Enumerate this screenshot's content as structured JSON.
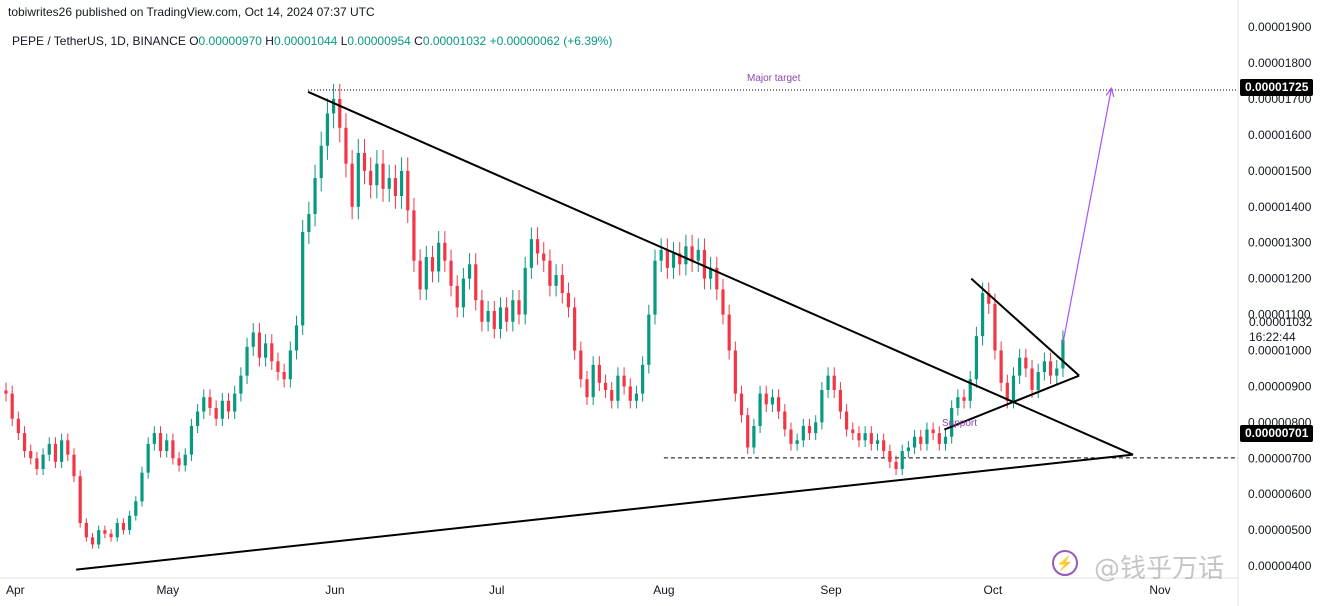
{
  "header": {
    "publisher": "tobiwrites26 published on TradingView.com, Oct 14, 2024 07:37 UTC",
    "symbol": "PEPE / TetherUS, 1D, BINANCE",
    "ohlc": [
      {
        "k": "O",
        "v": "0.00000970"
      },
      {
        "k": "H",
        "v": "0.00001044"
      },
      {
        "k": "L",
        "v": "0.00000954"
      },
      {
        "k": "C",
        "v": "0.00001032"
      }
    ],
    "change": "+0.00000062 (+6.39%)"
  },
  "annotations": {
    "major_target": "Major target",
    "support": "Support",
    "target_price": "0.00001725",
    "support_price": "0.00000701",
    "last_price": "0.00001032",
    "countdown": "16:22:44"
  },
  "watermark": {
    "text": "@钱乎万话",
    "icon": "lightning-icon"
  },
  "colors": {
    "up": "#089981",
    "down": "#f23645",
    "trend": "#000000",
    "target_arrow": "#a855f7"
  },
  "chart_data": {
    "type": "candlestick",
    "x_ticks": [
      "Apr",
      "May",
      "Jun",
      "Jul",
      "Aug",
      "Sep",
      "Oct",
      "Nov"
    ],
    "y_ticks": [
      "0.00000400",
      "0.00000500",
      "0.00000600",
      "0.00000700",
      "0.00000800",
      "0.00000900",
      "0.00001000",
      "0.00001100",
      "0.00001200",
      "0.00001300",
      "0.00001400",
      "0.00001500",
      "0.00001600",
      "0.00001700",
      "0.00001800",
      "0.00001900"
    ],
    "ylim": [
      3.5e-06,
      1.92e-05
    ],
    "xlim": [
      "2024-04-01",
      "2024-11-01"
    ],
    "grid": false,
    "levels": [
      {
        "label": "Major target",
        "value": 1.725e-05,
        "style": "dotted"
      },
      {
        "label": "Support",
        "value": 7.01e-06,
        "style": "dashed"
      }
    ],
    "trendlines": [
      {
        "from": [
          "2024-04-14",
          3.9e-06
        ],
        "to": [
          "2024-10-27",
          7.1e-06
        ]
      },
      {
        "from": [
          "2024-05-27",
          1.72e-05
        ],
        "to": [
          "2024-10-27",
          7.1e-06
        ]
      },
      {
        "from": [
          "2024-09-22",
          7.8e-06
        ],
        "to": [
          "2024-10-17",
          9.3e-06
        ]
      },
      {
        "from": [
          "2024-09-27",
          1.2e-05
        ],
        "to": [
          "2024-10-17",
          9.3e-06
        ]
      },
      {
        "from": [
          "2024-10-14",
          1.02e-05
        ],
        "to": [
          "2024-10-23",
          1.73e-05
        ],
        "arrow": true
      }
    ],
    "candles_close": [
      8.8e-06,
      8.1e-06,
      7.7e-06,
      7.2e-06,
      7e-06,
      6.7e-06,
      7.1e-06,
      7.4e-06,
      6.9e-06,
      7.5e-06,
      7.1e-06,
      6.5e-06,
      5.2e-06,
      4.8e-06,
      4.6e-06,
      5e-06,
      4.9e-06,
      4.8e-06,
      5.2e-06,
      5e-06,
      5.4e-06,
      5.8e-06,
      6.6e-06,
      7.4e-06,
      7.7e-06,
      7.2e-06,
      7.5e-06,
      7e-06,
      6.8e-06,
      7.1e-06,
      7.9e-06,
      8.3e-06,
      8.7e-06,
      8.4e-06,
      8.1e-06,
      8.6e-06,
      8.3e-06,
      8.8e-06,
      9.3e-06,
      1.01e-05,
      1.05e-05,
      9.8e-06,
      1.02e-05,
      9.7e-06,
      9.4e-06,
      9.2e-06,
      1e-05,
      1.07e-05,
      1.33e-05,
      1.38e-05,
      1.48e-05,
      1.57e-05,
      1.66e-05,
      1.7e-05,
      1.62e-05,
      1.52e-05,
      1.4e-05,
      1.55e-05,
      1.5e-05,
      1.46e-05,
      1.52e-05,
      1.45e-05,
      1.48e-05,
      1.43e-05,
      1.5e-05,
      1.39e-05,
      1.25e-05,
      1.17e-05,
      1.26e-05,
      1.22e-05,
      1.3e-05,
      1.25e-05,
      1.18e-05,
      1.12e-05,
      1.2e-05,
      1.24e-05,
      1.14e-05,
      1.08e-05,
      1.11e-05,
      1.06e-05,
      1.12e-05,
      1.08e-05,
      1.14e-05,
      1.1e-05,
      1.23e-05,
      1.31e-05,
      1.27e-05,
      1.25e-05,
      1.18e-05,
      1.21e-05,
      1.16e-05,
      1.12e-05,
      1e-05,
      9.2e-06,
      8.7e-06,
      9.6e-06,
      9.1e-06,
      8.9e-06,
      8.6e-06,
      9.3e-06,
      9e-06,
      8.6e-06,
      8.8e-06,
      9.6e-06,
      1.1e-05,
      1.25e-05,
      1.28e-05,
      1.23e-05,
      1.27e-05,
      1.24e-05,
      1.29e-05,
      1.25e-05,
      1.28e-05,
      1.2e-05,
      1.23e-05,
      1.17e-05,
      1.1e-05,
      1e-05,
      8.8e-06,
      8.2e-06,
      7.3e-06,
      7.9e-06,
      8.8e-06,
      8.5e-06,
      8.7e-06,
      8.3e-06,
      7.8e-06,
      7.4e-06,
      7.5e-06,
      7.9e-06,
      7.7e-06,
      8e-06,
      8.9e-06,
      9.3e-06,
      8.9e-06,
      8.3e-06,
      7.8e-06,
      7.7e-06,
      7.5e-06,
      7.7e-06,
      7.4e-06,
      7.5e-06,
      7.2e-06,
      6.9e-06,
      6.7e-06,
      7.2e-06,
      7.3e-06,
      7.6e-06,
      7.4e-06,
      7.8e-06,
      7.7e-06,
      7.4e-06,
      7.6e-06,
      8.4e-06,
      8.7e-06,
      8.6e-06,
      9.2e-06,
      1.04e-05,
      1.16e-05,
      1.13e-05,
      1e-05,
      9.1e-06,
      8.6e-06,
      9.3e-06,
      9.8e-06,
      9.5e-06,
      8.9e-06,
      9.4e-06,
      9.7e-06,
      9.3e-06,
      9.5e-06,
      1.03e-05
    ]
  }
}
